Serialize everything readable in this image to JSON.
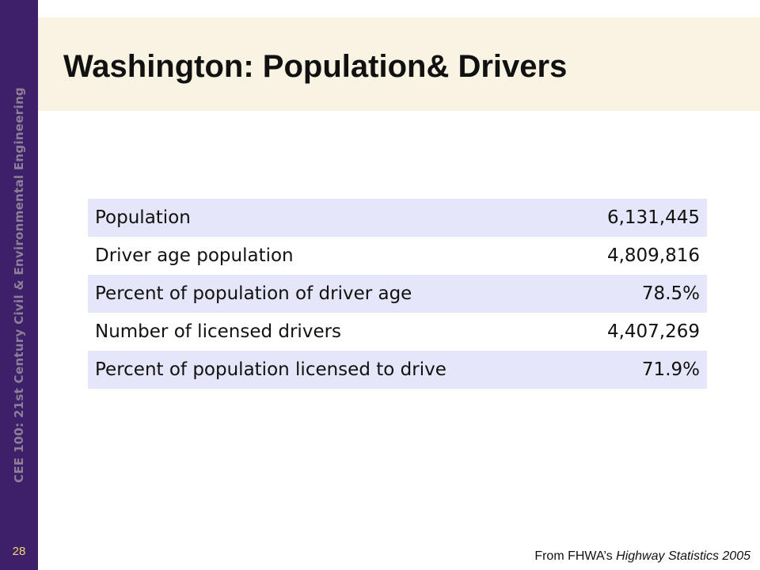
{
  "sidebar": {
    "course_text": "CEE 100: 21st Century Civil & Environmental Engineering",
    "slide_number": "28"
  },
  "header": {
    "title": "Washington: Population& Drivers"
  },
  "table": {
    "rows": [
      {
        "label": "Population",
        "value": "6,131,445"
      },
      {
        "label": "Driver age population",
        "value": "4,809,816"
      },
      {
        "label": "Percent of population of driver age",
        "value": "78.5%"
      },
      {
        "label": "Number of licensed drivers",
        "value": "4,407,269"
      },
      {
        "label": "Percent of population licensed to drive",
        "value": "71.9%"
      }
    ]
  },
  "source": {
    "prefix": "From FHWA’s ",
    "publication": "Highway Statistics 2005"
  },
  "colors": {
    "sidebar": "#3d1f6a",
    "title_band": "#f8f3e2",
    "row_shade": "#e6e6fa",
    "slide_number": "#f2d96b"
  }
}
